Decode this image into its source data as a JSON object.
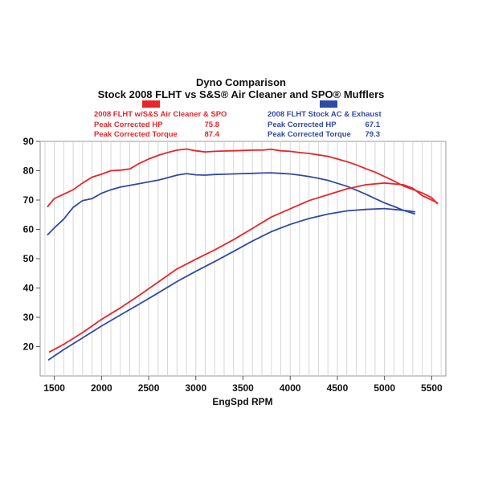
{
  "chart_data": {
    "type": "line",
    "title": "Dyno Comparison",
    "subtitle": "Stock 2008 FLHT vs S&S® Air Cleaner and SPO® Mufflers",
    "xlabel": "EngSpd RPM",
    "ylabel": "",
    "xlim": [
      1350,
      5650
    ],
    "ylim": [
      10,
      90
    ],
    "x_ticks": [
      "1500",
      "2000",
      "2500",
      "3000",
      "3500",
      "4000",
      "4500",
      "5000",
      "5500"
    ],
    "y_ticks": [
      "20",
      "30",
      "40",
      "50",
      "60",
      "70",
      "80",
      "90"
    ],
    "grid": "vertical",
    "legend": [
      {
        "color": "#e8252b",
        "name": "2008 FLHT w/S&S Air Cleaner & SPO",
        "rows": [
          {
            "label": "Peak Corrected HP",
            "value": "75.8"
          },
          {
            "label": "Peak Corrected Torque",
            "value": "87.4"
          }
        ]
      },
      {
        "color": "#2f4aa6",
        "name": "2008 FLHT Stock AC & Exhaust",
        "rows": [
          {
            "label": "Peak Corrected HP",
            "value": "67.1"
          },
          {
            "label": "Peak Corrected Torque",
            "value": "79.3"
          }
        ]
      }
    ],
    "series": [
      {
        "id": "red-torque",
        "color": "#e8252b",
        "x": [
          1430,
          1500,
          1600,
          1700,
          1800,
          1900,
          2000,
          2100,
          2200,
          2300,
          2400,
          2500,
          2600,
          2700,
          2800,
          2900,
          3000,
          3100,
          3200,
          3300,
          3400,
          3500,
          3600,
          3700,
          3800,
          3900,
          4000,
          4100,
          4200,
          4300,
          4400,
          4500,
          4600,
          4700,
          4800,
          4900,
          5000,
          5100,
          5200,
          5300,
          5400,
          5500,
          5560
        ],
        "y": [
          67.8,
          70.5,
          72.0,
          73.5,
          75.8,
          77.8,
          78.8,
          80.0,
          80.2,
          80.6,
          82.5,
          84.0,
          85.2,
          86.2,
          87.0,
          87.4,
          86.8,
          86.4,
          86.6,
          86.7,
          86.8,
          86.9,
          87.0,
          87.0,
          87.3,
          86.8,
          86.6,
          86.2,
          85.9,
          85.4,
          84.9,
          84.0,
          83.1,
          82.0,
          80.7,
          79.5,
          78.0,
          76.5,
          74.8,
          73.6,
          72.4,
          70.8,
          68.8
        ]
      },
      {
        "id": "blue-torque",
        "color": "#2f4aa6",
        "x": [
          1430,
          1500,
          1600,
          1700,
          1800,
          1900,
          2000,
          2100,
          2200,
          2300,
          2400,
          2500,
          2600,
          2700,
          2800,
          2900,
          3000,
          3100,
          3200,
          3300,
          3400,
          3500,
          3600,
          3700,
          3800,
          3900,
          4000,
          4100,
          4200,
          4300,
          4400,
          4500,
          4600,
          4700,
          4800,
          4900,
          5000,
          5100,
          5200,
          5320
        ],
        "y": [
          58.2,
          60.5,
          63.5,
          67.5,
          69.8,
          70.5,
          72.3,
          73.5,
          74.4,
          75.0,
          75.6,
          76.2,
          76.8,
          77.6,
          78.5,
          79.0,
          78.6,
          78.5,
          78.7,
          78.8,
          78.9,
          79.0,
          79.1,
          79.2,
          79.3,
          79.1,
          78.9,
          78.5,
          78.0,
          77.4,
          76.7,
          75.7,
          74.7,
          73.4,
          72.0,
          70.5,
          69.0,
          67.8,
          66.5,
          65.3
        ]
      },
      {
        "id": "red-hp",
        "color": "#e8252b",
        "x": [
          1450,
          1600,
          1800,
          2000,
          2200,
          2400,
          2600,
          2800,
          3000,
          3200,
          3400,
          3600,
          3800,
          4000,
          4200,
          4400,
          4600,
          4800,
          5000,
          5200,
          5300,
          5400,
          5500,
          5560
        ],
        "y": [
          18.2,
          20.8,
          24.8,
          29.3,
          33.2,
          37.5,
          42.0,
          46.5,
          49.8,
          53.0,
          56.5,
          60.3,
          64.2,
          67.0,
          69.8,
          71.8,
          73.8,
          75.2,
          75.8,
          75.2,
          74.0,
          71.5,
          70.0,
          69.0
        ]
      },
      {
        "id": "blue-hp",
        "color": "#2f4aa6",
        "x": [
          1440,
          1600,
          1800,
          2000,
          2200,
          2400,
          2600,
          2800,
          3000,
          3200,
          3400,
          3600,
          3800,
          4000,
          4200,
          4400,
          4600,
          4800,
          5000,
          5200,
          5320
        ],
        "y": [
          15.5,
          19.0,
          23.0,
          27.0,
          30.8,
          34.5,
          38.3,
          42.2,
          45.7,
          49.0,
          52.5,
          56.0,
          59.2,
          61.7,
          63.7,
          65.2,
          66.3,
          66.8,
          67.1,
          66.5,
          66.0
        ]
      }
    ]
  }
}
